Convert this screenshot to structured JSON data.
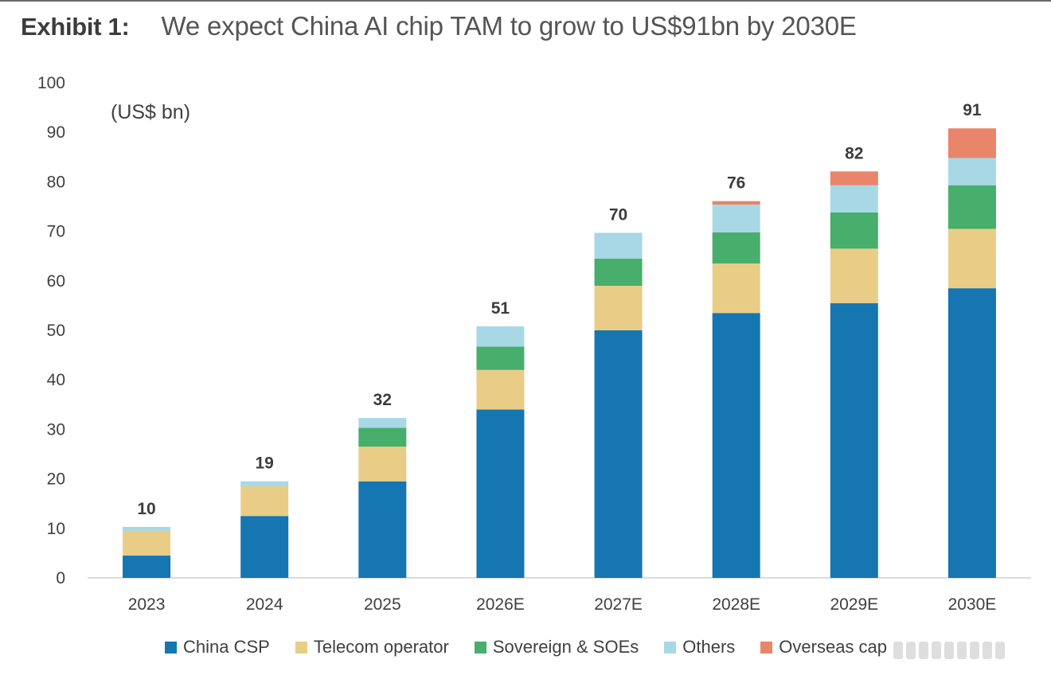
{
  "header": {
    "exhibit_label": "Exhibit 1:",
    "title": "We expect China AI chip TAM to grow to US$91bn by 2030E"
  },
  "chart_data": {
    "type": "bar",
    "stacked": true,
    "unit_label": "(US$ bn)",
    "categories": [
      "2023",
      "2024",
      "2025",
      "2026E",
      "2027E",
      "2028E",
      "2029E",
      "2030E"
    ],
    "series": [
      {
        "name": "China CSP",
        "color": "#1576B2",
        "values": [
          4.5,
          12.5,
          19.5,
          34,
          50,
          53.5,
          55.5,
          58.5
        ]
      },
      {
        "name": "Telecom operator",
        "color": "#E9CD86",
        "values": [
          5.0,
          6.0,
          7.0,
          8,
          9,
          10,
          11,
          12
        ]
      },
      {
        "name": "Sovereign & SOEs",
        "color": "#47AE6C",
        "values": [
          0,
          0,
          3.8,
          4.7,
          5.5,
          6.3,
          7.3,
          8.8
        ]
      },
      {
        "name": "Others",
        "color": "#A8D8E6",
        "values": [
          0.8,
          1.0,
          2.0,
          4.1,
          5.2,
          5.6,
          5.5,
          5.5
        ]
      },
      {
        "name": "Overseas cap",
        "color": "#E8856A",
        "values": [
          0,
          0,
          0,
          0,
          0,
          0.7,
          2.8,
          6.0
        ]
      }
    ],
    "totals": [
      "10",
      "19",
      "32",
      "51",
      "70",
      "76",
      "82",
      "91"
    ],
    "ylim": [
      0,
      100
    ],
    "yticks": [
      0,
      10,
      20,
      30,
      40,
      50,
      60,
      70,
      80,
      90,
      100
    ],
    "grid": false,
    "legend_position": "bottom"
  }
}
